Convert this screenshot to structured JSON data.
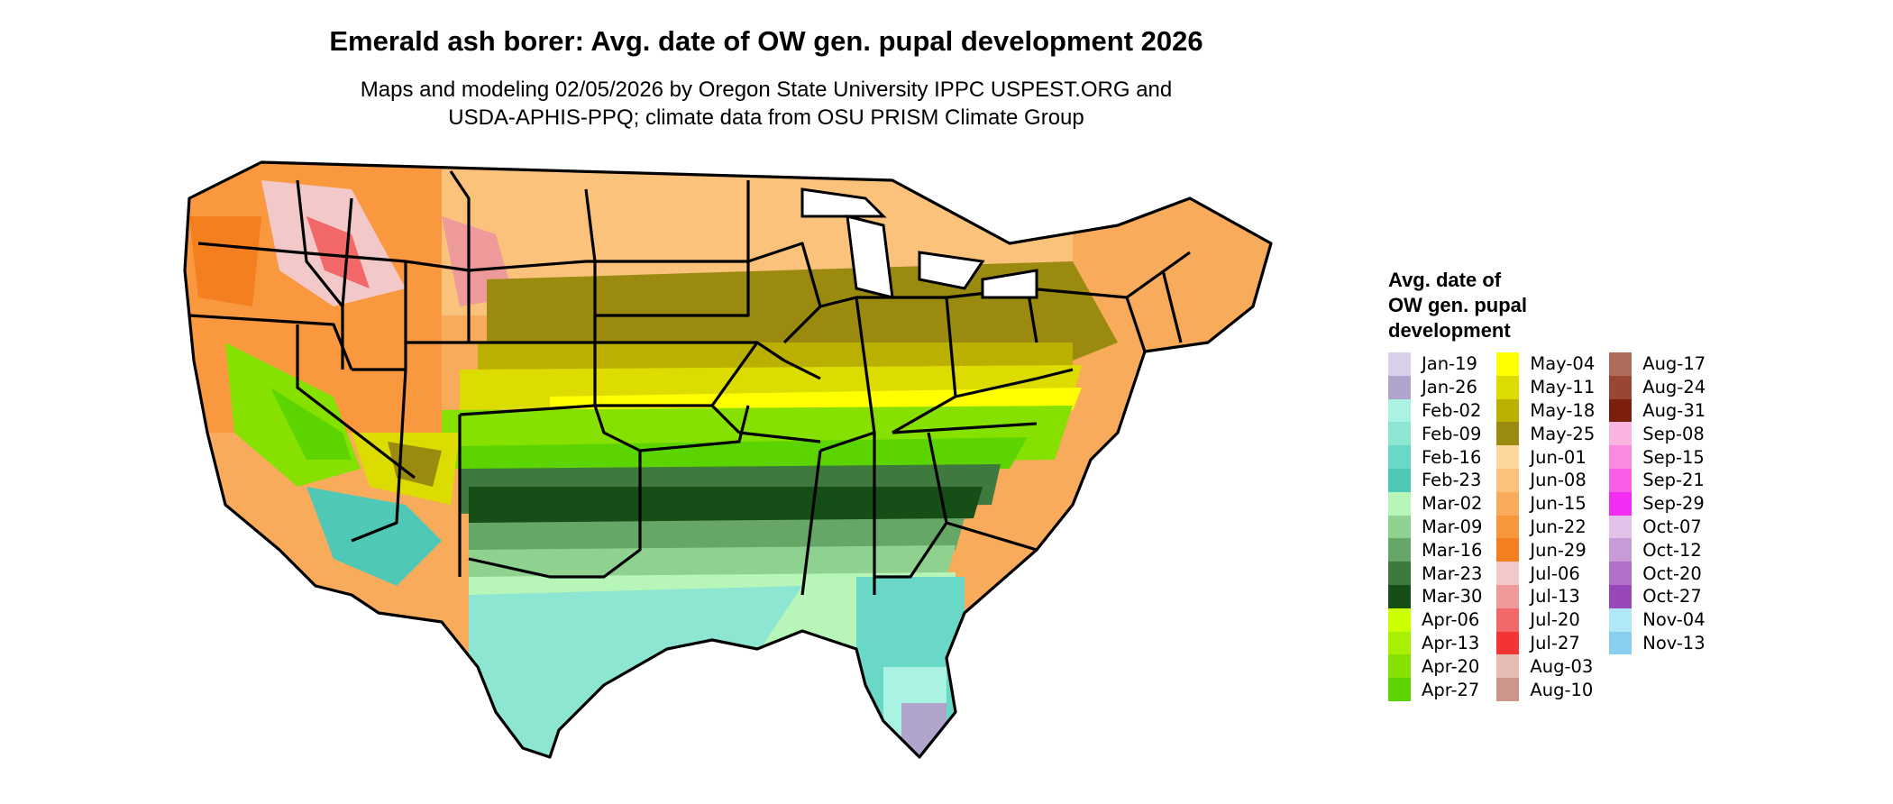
{
  "title": "Emerald ash borer: Avg. date of OW gen. pupal development 2026",
  "subtitle": "Maps and modeling 02/05/2026 by Oregon State University IPPC USPEST.ORG and\nUSDA-APHIS-PPQ; climate data from OSU PRISM Climate Group",
  "legend": {
    "title": "Avg. date of\nOW gen. pupal\ndevelopment",
    "columns": [
      [
        {
          "label": "Jan-19",
          "color": "#d9cfe8"
        },
        {
          "label": "Jan-26",
          "color": "#b0a3cc"
        },
        {
          "label": "Feb-02",
          "color": "#aaf2e2"
        },
        {
          "label": "Feb-09",
          "color": "#8ce6d2"
        },
        {
          "label": "Feb-16",
          "color": "#6ad8c6"
        },
        {
          "label": "Feb-23",
          "color": "#4fc9b6"
        },
        {
          "label": "Mar-02",
          "color": "#b8f5b8"
        },
        {
          "label": "Mar-09",
          "color": "#8fd18f"
        },
        {
          "label": "Mar-16",
          "color": "#66a666"
        },
        {
          "label": "Mar-23",
          "color": "#3e7a3e"
        },
        {
          "label": "Mar-30",
          "color": "#174d17"
        },
        {
          "label": "Apr-06",
          "color": "#ccff00"
        },
        {
          "label": "Apr-13",
          "color": "#a8f000"
        },
        {
          "label": "Apr-20",
          "color": "#86e000"
        },
        {
          "label": "Apr-27",
          "color": "#5cd400"
        }
      ],
      [
        {
          "label": "May-04",
          "color": "#ffff00"
        },
        {
          "label": "May-11",
          "color": "#dcdc00"
        },
        {
          "label": "May-18",
          "color": "#bbb000"
        },
        {
          "label": "May-25",
          "color": "#9a8a10"
        },
        {
          "label": "Jun-01",
          "color": "#fcd89a"
        },
        {
          "label": "Jun-08",
          "color": "#fbc27c"
        },
        {
          "label": "Jun-15",
          "color": "#f9ab5c"
        },
        {
          "label": "Jun-22",
          "color": "#f8963c"
        },
        {
          "label": "Jun-29",
          "color": "#f47f1e"
        },
        {
          "label": "Jul-06",
          "color": "#f2c8c8"
        },
        {
          "label": "Jul-13",
          "color": "#ee9a9a"
        },
        {
          "label": "Jul-20",
          "color": "#f26868"
        },
        {
          "label": "Jul-27",
          "color": "#f43434"
        },
        {
          "label": "Aug-03",
          "color": "#e6bcb4"
        },
        {
          "label": "Aug-10",
          "color": "#cc968c"
        }
      ],
      [
        {
          "label": "Aug-17",
          "color": "#b06c5a"
        },
        {
          "label": "Aug-24",
          "color": "#9a4634"
        },
        {
          "label": "Aug-31",
          "color": "#7c1e0c"
        },
        {
          "label": "Sep-08",
          "color": "#f9b4e0"
        },
        {
          "label": "Sep-15",
          "color": "#f98ae0"
        },
        {
          "label": "Sep-21",
          "color": "#f65ee6"
        },
        {
          "label": "Sep-29",
          "color": "#f22cf0"
        },
        {
          "label": "Oct-07",
          "color": "#e2c2e8"
        },
        {
          "label": "Oct-12",
          "color": "#c99ad8"
        },
        {
          "label": "Oct-20",
          "color": "#b070c8"
        },
        {
          "label": "Oct-27",
          "color": "#9848b8"
        },
        {
          "label": "Nov-04",
          "color": "#b0e8fa"
        },
        {
          "label": "Nov-13",
          "color": "#88cff0"
        }
      ]
    ]
  }
}
